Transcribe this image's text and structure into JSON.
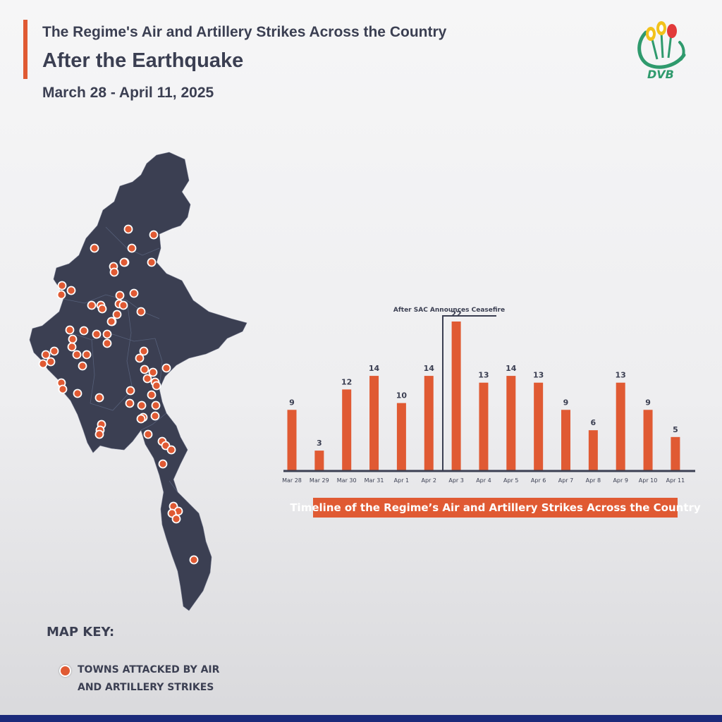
{
  "header": {
    "title_line1": "The Regime's Air and Artillery Strikes Across the Country",
    "title_line2": "After the Earthquake",
    "date_range": "March 28 - April 11, 2025"
  },
  "logo": {
    "text": "DVB",
    "icon": "dvb-logo-icon"
  },
  "colors": {
    "accent": "#e05a33",
    "map_fill": "#3b3f52",
    "text": "#3b3f52",
    "bottom_bar": "#1b2a7a"
  },
  "map": {
    "icon": "myanmar-map-icon",
    "marker_color": "#e05a33",
    "marker_count": 82
  },
  "chart_data": {
    "type": "bar",
    "title": "Timeline of the Regime’s Air and Artillery Strikes Across the Country",
    "categories": [
      "Mar 28",
      "Mar 29",
      "Mar 30",
      "Mar 31",
      "Apr 1",
      "Apr 2",
      "Apr 3",
      "Apr 4",
      "Apr 5",
      "Apr 6",
      "Apr 7",
      "Apr 8",
      "Apr 9",
      "Apr 10",
      "Apr 11"
    ],
    "values": [
      9,
      3,
      12,
      14,
      10,
      14,
      22,
      13,
      14,
      13,
      9,
      6,
      13,
      9,
      5
    ],
    "ylim": [
      0,
      22
    ],
    "grid": false,
    "annotation": {
      "text": "After SAC Announces Ceasefire",
      "between": [
        "Apr 2",
        "Apr 3"
      ]
    },
    "bar_color": "#e05a33"
  },
  "legend": {
    "title": "MAP KEY:",
    "entries": [
      {
        "label": "TOWNS ATTACKED BY AIR AND ARTILLERY STRIKES",
        "color": "#e05a33"
      }
    ]
  }
}
